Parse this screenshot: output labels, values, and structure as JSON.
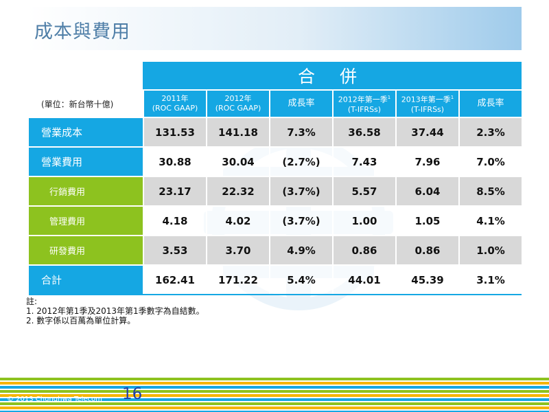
{
  "title": "成本與費用",
  "table": {
    "merge_header": "合 併",
    "unit": "(單位：新台幣十億)",
    "columns": [
      {
        "line1": "2011年",
        "line2": "(ROC GAAP)",
        "sup": ""
      },
      {
        "line1": "2012年",
        "line2": "(ROC GAAP)",
        "sup": ""
      },
      {
        "line1": "成長率",
        "line2": "",
        "sup": ""
      },
      {
        "line1": "2012年第一季",
        "line2": "(T-IFRSs)",
        "sup": "1"
      },
      {
        "line1": "2013年第一季",
        "line2": "(T-IFRSs)",
        "sup": "1"
      },
      {
        "line1": "成長率",
        "line2": "",
        "sup": ""
      }
    ],
    "rows": [
      {
        "label": "營業成本",
        "values": [
          "131.53",
          "141.18",
          "7.3%",
          "36.58",
          "37.44",
          "2.3%"
        ]
      },
      {
        "label": "營業費用",
        "values": [
          "30.88",
          "30.04",
          "(2.7%)",
          "7.43",
          "7.96",
          "7.0%"
        ]
      },
      {
        "label": "行銷費用",
        "values": [
          "23.17",
          "22.32",
          "(3.7%)",
          "5.57",
          "6.04",
          "8.5%"
        ]
      },
      {
        "label": "管理費用",
        "values": [
          "4.18",
          "4.02",
          "(3.7%)",
          "1.00",
          "1.05",
          "4.1%"
        ]
      },
      {
        "label": "研發費用",
        "values": [
          "3.53",
          "3.70",
          "4.9%",
          "0.86",
          "0.86",
          "1.0%"
        ]
      },
      {
        "label": "合計",
        "values": [
          "162.41",
          "171.22",
          "5.4%",
          "44.01",
          "45.39",
          "3.1%"
        ]
      }
    ]
  },
  "notes": {
    "heading": "註:",
    "items": [
      "1.  2012年第1季及2013年第1季數字為自結數。",
      "2.  數字係以百萬為單位計算。"
    ]
  },
  "footer": {
    "copyright": "© 2013 Chunghwa Telecom",
    "page_number": "16"
  },
  "colors": {
    "header_blue": "#15a7e3",
    "sub_green": "#8dc21f",
    "title_text": "#4e7ea7",
    "page_number": "#1f3fa6"
  }
}
